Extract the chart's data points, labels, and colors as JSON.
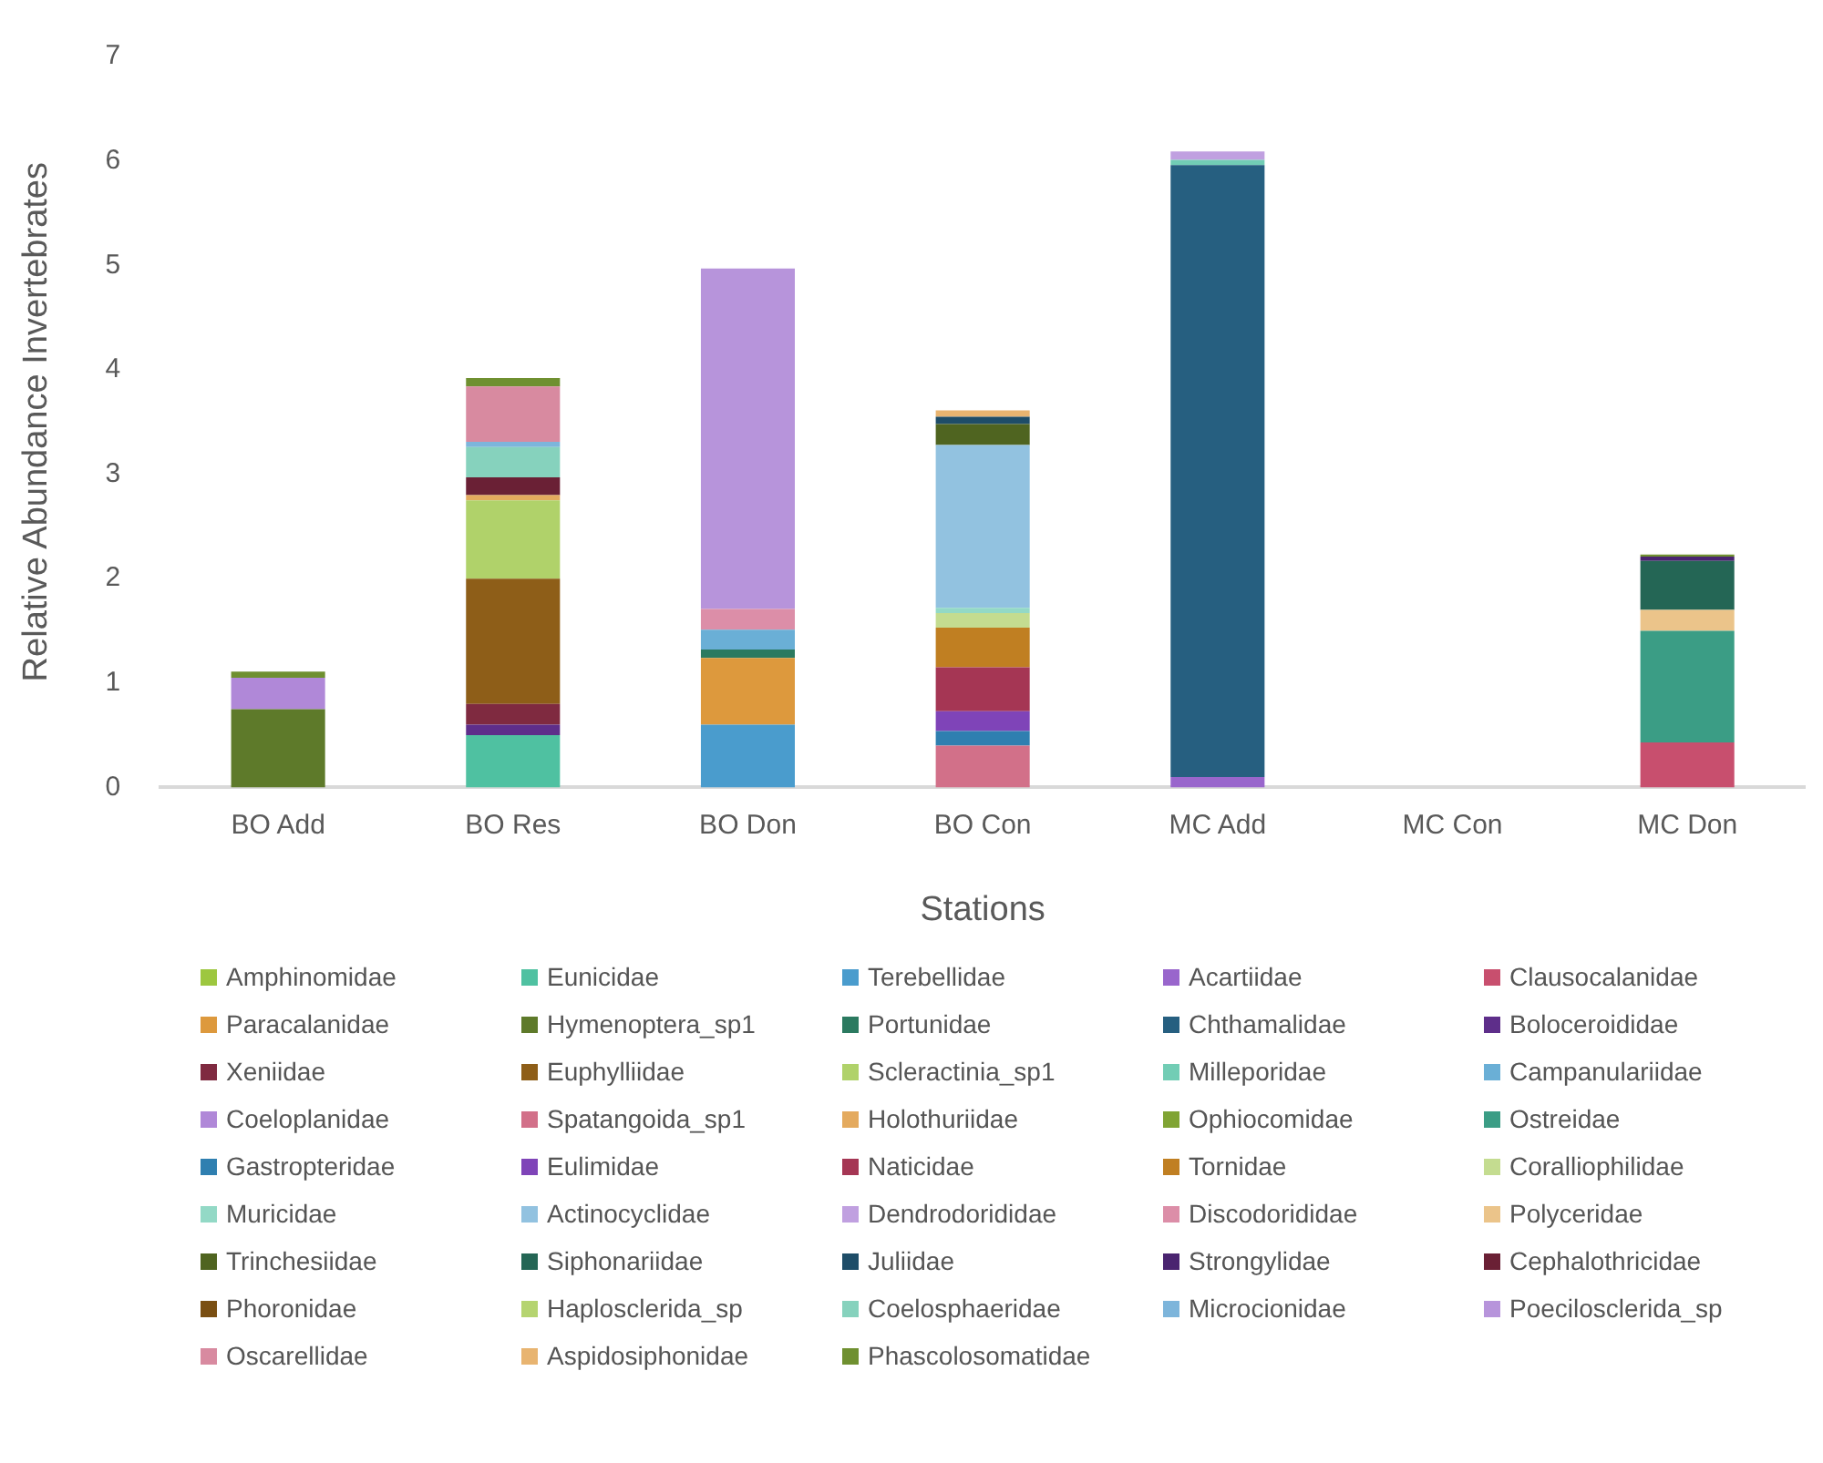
{
  "chart_data": {
    "type": "bar",
    "stacked": true,
    "xlabel": "Stations",
    "ylabel": "Relative Abundance Invertebrates",
    "categories": [
      "BO Add",
      "BO Res",
      "BO Don",
      "BO Con",
      "MC Add",
      "MC Con",
      "MC Don"
    ],
    "ylim": [
      0,
      7
    ],
    "yticks": [
      0,
      1,
      2,
      3,
      4,
      5,
      6,
      7
    ],
    "grid": false,
    "legend": "bottom",
    "series": [
      {
        "name": "Amphinomidae",
        "color": "#9dc73f",
        "values": [
          null,
          null,
          null,
          null,
          null,
          null,
          null
        ]
      },
      {
        "name": "Eunicidae",
        "color": "#4fc1a1",
        "values": [
          null,
          0.5,
          null,
          null,
          null,
          null,
          null
        ]
      },
      {
        "name": "Terebellidae",
        "color": "#4a9ccd",
        "values": [
          null,
          null,
          0.6,
          null,
          null,
          null,
          null
        ]
      },
      {
        "name": "Acartiidae",
        "color": "#9966cc",
        "values": [
          null,
          null,
          null,
          null,
          0.1,
          null,
          null
        ]
      },
      {
        "name": "Clausocalanidae",
        "color": "#c84f6e",
        "values": [
          null,
          null,
          null,
          null,
          null,
          null,
          0.43
        ]
      },
      {
        "name": "Paracalanidae",
        "color": "#dd993d",
        "values": [
          null,
          null,
          0.64,
          null,
          null,
          null,
          null
        ]
      },
      {
        "name": "Hymenoptera_sp1",
        "color": "#5e7a2a",
        "values": [
          0.75,
          null,
          null,
          null,
          null,
          null,
          null
        ]
      },
      {
        "name": "Portunidae",
        "color": "#2b7a60",
        "values": [
          null,
          null,
          0.08,
          null,
          null,
          null,
          null
        ]
      },
      {
        "name": "Chthamalidae",
        "color": "#265f80",
        "values": [
          null,
          null,
          null,
          null,
          5.86,
          null,
          null
        ]
      },
      {
        "name": "Boloceroididae",
        "color": "#5e2e8a",
        "values": [
          null,
          0.1,
          null,
          null,
          null,
          null,
          null
        ]
      },
      {
        "name": "Xeniidae",
        "color": "#7f2a40",
        "values": [
          null,
          0.2,
          null,
          null,
          null,
          null,
          null
        ]
      },
      {
        "name": "Euphylliidae",
        "color": "#8e5e18",
        "values": [
          null,
          1.2,
          null,
          null,
          null,
          null,
          null
        ]
      },
      {
        "name": "Scleractinia_sp1",
        "color": "#b0d26a",
        "values": [
          null,
          0.75,
          null,
          null,
          null,
          null,
          null
        ]
      },
      {
        "name": "Milleporidae",
        "color": "#72cdb5",
        "values": [
          null,
          null,
          null,
          null,
          0.05,
          null,
          null
        ]
      },
      {
        "name": "Campanulariidae",
        "color": "#6aafd6",
        "values": [
          null,
          null,
          0.19,
          null,
          null,
          null,
          null
        ]
      },
      {
        "name": "Coeloplanidae",
        "color": "#b088d8",
        "values": [
          0.3,
          null,
          null,
          null,
          null,
          null,
          null
        ]
      },
      {
        "name": "Spatangoida_sp1",
        "color": "#d27089",
        "values": [
          null,
          null,
          null,
          0.4,
          null,
          null,
          null
        ]
      },
      {
        "name": "Holothuriidae",
        "color": "#e4aa5e",
        "values": [
          null,
          0.05,
          null,
          null,
          null,
          null,
          null
        ]
      },
      {
        "name": "Ophiocomidae",
        "color": "#80a434",
        "values": [
          null,
          null,
          null,
          null,
          null,
          null,
          null
        ]
      },
      {
        "name": "Ostreidae",
        "color": "#3b9d85",
        "values": [
          null,
          null,
          null,
          null,
          null,
          null,
          1.07
        ]
      },
      {
        "name": "Gastropteridae",
        "color": "#2f7fb0",
        "values": [
          null,
          null,
          null,
          0.14,
          null,
          null,
          null
        ]
      },
      {
        "name": "Eulimidae",
        "color": "#7f44b8",
        "values": [
          null,
          null,
          null,
          0.19,
          null,
          null,
          null
        ]
      },
      {
        "name": "Naticidae",
        "color": "#a53654",
        "values": [
          null,
          null,
          null,
          0.42,
          null,
          null,
          null
        ]
      },
      {
        "name": "Tornidae",
        "color": "#c07f22",
        "values": [
          null,
          null,
          null,
          0.38,
          null,
          null,
          null
        ]
      },
      {
        "name": "Coralliophilidae",
        "color": "#c4dc90",
        "values": [
          null,
          null,
          null,
          0.14,
          null,
          null,
          null
        ]
      },
      {
        "name": "Muricidae",
        "color": "#93d9c6",
        "values": [
          null,
          null,
          null,
          0.05,
          null,
          null,
          null
        ]
      },
      {
        "name": "Actinocyclidae",
        "color": "#92c2e0",
        "values": [
          null,
          null,
          null,
          1.56,
          null,
          null,
          null
        ]
      },
      {
        "name": "Dendrodorididae",
        "color": "#c0a0e0",
        "values": [
          null,
          null,
          null,
          null,
          0.08,
          null,
          null
        ]
      },
      {
        "name": "Discodorididae",
        "color": "#dc8ea8",
        "values": [
          null,
          null,
          0.2,
          null,
          null,
          null,
          null
        ]
      },
      {
        "name": "Polyceridae",
        "color": "#ebc48a",
        "values": [
          null,
          null,
          null,
          null,
          null,
          null,
          0.2
        ]
      },
      {
        "name": "Trinchesiidae",
        "color": "#4f6420",
        "values": [
          null,
          null,
          null,
          0.2,
          null,
          null,
          null
        ]
      },
      {
        "name": "Siphonariidae",
        "color": "#246655",
        "values": [
          null,
          null,
          null,
          null,
          null,
          null,
          0.47
        ]
      },
      {
        "name": "Juliidae",
        "color": "#1e4d68",
        "values": [
          null,
          null,
          null,
          0.07,
          null,
          null,
          null
        ]
      },
      {
        "name": "Strongylidae",
        "color": "#4a2470",
        "values": [
          null,
          null,
          null,
          null,
          null,
          null,
          0.04
        ]
      },
      {
        "name": "Cephalothricidae",
        "color": "#6a2035",
        "values": [
          null,
          0.17,
          null,
          null,
          null,
          null,
          null
        ]
      },
      {
        "name": "Phoronidae",
        "color": "#7a4f12",
        "values": [
          null,
          null,
          null,
          null,
          null,
          null,
          null
        ]
      },
      {
        "name": "Haplosclerida_sp",
        "color": "#b5d470",
        "values": [
          null,
          null,
          null,
          null,
          null,
          null,
          null
        ]
      },
      {
        "name": "Coelosphaeridae",
        "color": "#86d2bd",
        "values": [
          null,
          0.29,
          null,
          null,
          null,
          null,
          null
        ]
      },
      {
        "name": "Microcionidae",
        "color": "#7db5db",
        "values": [
          null,
          0.05,
          null,
          null,
          null,
          null,
          null
        ]
      },
      {
        "name": "Poecilosclerida_sp",
        "color": "#b794db",
        "values": [
          null,
          null,
          3.26,
          null,
          null,
          null,
          null
        ]
      },
      {
        "name": "Oscarellidae",
        "color": "#d88aa0",
        "values": [
          null,
          0.53,
          null,
          null,
          null,
          null,
          null
        ]
      },
      {
        "name": "Aspidosiphonidae",
        "color": "#e8b470",
        "values": [
          null,
          null,
          null,
          0.06,
          null,
          null,
          null
        ]
      },
      {
        "name": "Phascolosomatidae",
        "color": "#6f9030",
        "values": [
          0.06,
          0.08,
          null,
          null,
          null,
          null,
          0.02
        ]
      }
    ]
  }
}
